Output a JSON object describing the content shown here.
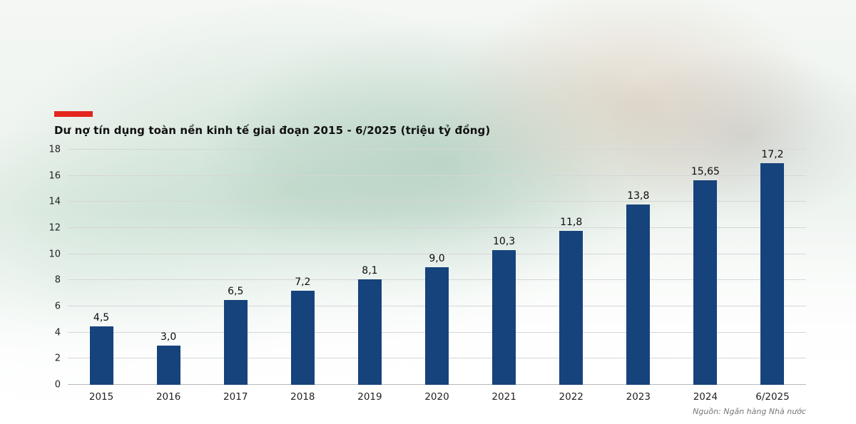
{
  "colors": {
    "bar": "#16437c",
    "accent": "#e4251f",
    "gridline": "#d6d6d6",
    "axis_baseline": "#b8b8b8"
  },
  "chart_data": {
    "type": "bar",
    "title": "Dư nợ tín dụng toàn nền kinh tế giai đoạn 2015 - 6/2025 (triệu tỷ đồng)",
    "categories": [
      "2015",
      "2016",
      "2017",
      "2018",
      "2019",
      "2020",
      "2021",
      "2022",
      "2023",
      "2024",
      "6/2025"
    ],
    "values": [
      4.5,
      3.0,
      6.5,
      7.2,
      8.1,
      9.0,
      10.3,
      11.8,
      13.8,
      15.65,
      17.2
    ],
    "value_labels": [
      "4,5",
      "3,0",
      "6,5",
      "7,2",
      "8,1",
      "9,0",
      "10,3",
      "11,8",
      "13,8",
      "15,65",
      "17,2"
    ],
    "ylim": [
      0,
      18
    ],
    "yticks": [
      0,
      2,
      4,
      6,
      8,
      10,
      12,
      14,
      16,
      18
    ],
    "grid": true,
    "legend": "none",
    "unit": "triệu tỷ đồng",
    "source": "Nguồn: Ngân hàng Nhà nước"
  }
}
